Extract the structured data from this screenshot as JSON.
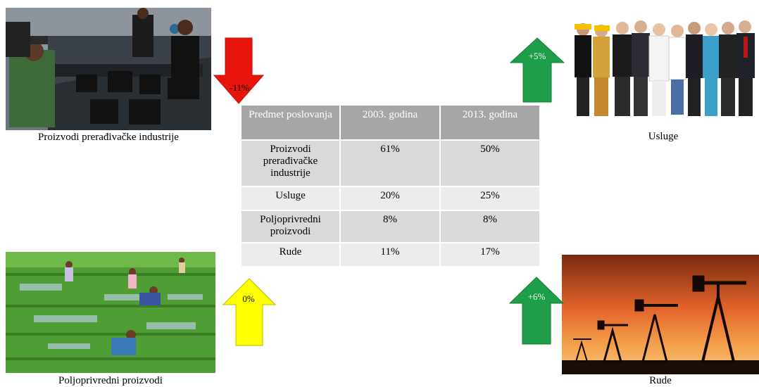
{
  "table": {
    "headers": [
      "Predmet poslovanja",
      "2003. godina",
      "2013. godina"
    ],
    "rows": [
      {
        "category": "Proizvodi prerađivačke industrije",
        "y2003": "61%",
        "y2013": "50%"
      },
      {
        "category": "Usluge",
        "y2003": "20%",
        "y2013": "25%"
      },
      {
        "category": "Poljoprivredni proizvodi",
        "y2003": "8%",
        "y2013": "8%"
      },
      {
        "category": "Rude",
        "y2003": "11%",
        "y2013": "17%"
      }
    ]
  },
  "panels": {
    "manufacturing": {
      "caption": "Proizvodi prerađivačke industrije",
      "change": "-11%",
      "arrow_direction": "down",
      "arrow_color": "#e8150d"
    },
    "services": {
      "caption": "Usluge",
      "change": "+5%",
      "arrow_direction": "up",
      "arrow_color": "#1e9e49"
    },
    "agriculture": {
      "caption": "Poljoprivredni proizvodi",
      "change": "0%",
      "arrow_direction": "up",
      "arrow_color": "#ffff00"
    },
    "ores": {
      "caption": "Rude",
      "change": "+6%",
      "arrow_direction": "up",
      "arrow_color": "#1e9e49"
    }
  }
}
